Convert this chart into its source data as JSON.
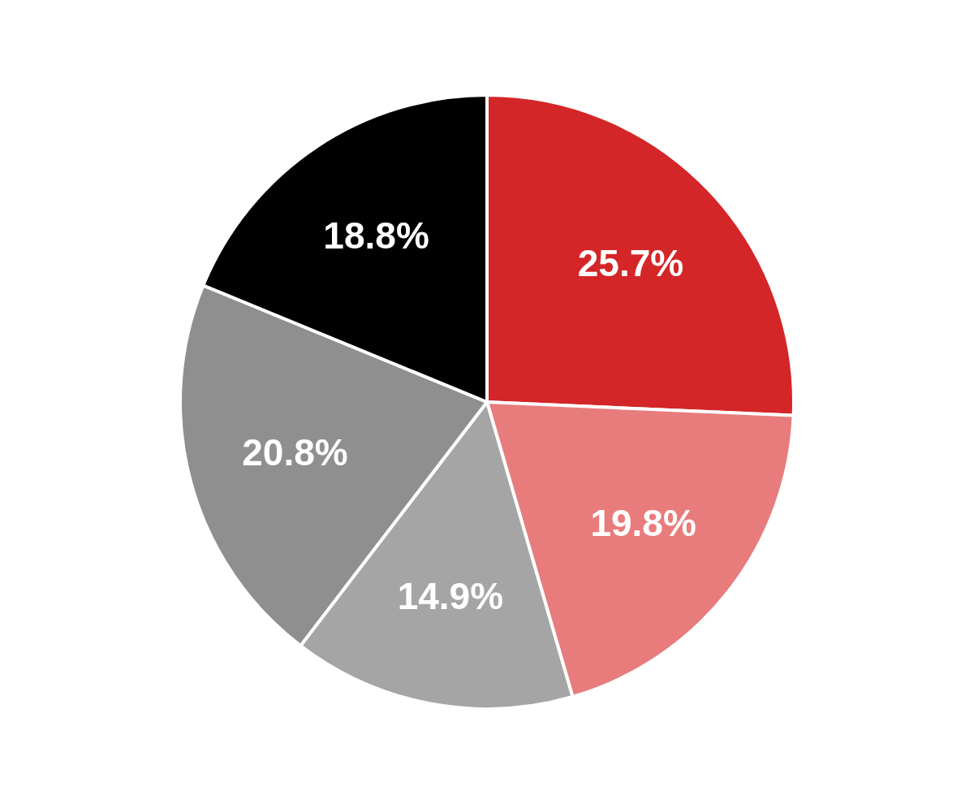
{
  "chart_data": {
    "type": "pie",
    "categories": [
      null,
      null,
      null,
      null,
      null
    ],
    "values": [
      25.7,
      19.8,
      14.9,
      20.8,
      18.8
    ],
    "colors": [
      "#d42628",
      "#e87c7c",
      "#a5a5a5",
      "#8f8f8f",
      "#000000"
    ],
    "value_labels": [
      "25.7%",
      "19.8%",
      "14.9%",
      "20.8%",
      "18.8%"
    ]
  }
}
